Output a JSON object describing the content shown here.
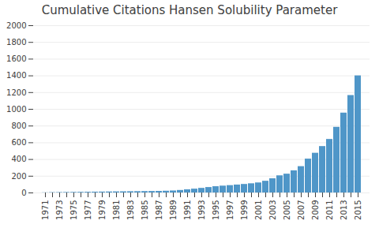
{
  "chart_data": {
    "type": "bar",
    "title": "Cumulative Citations Hansen Solubility Parameter",
    "categories": [
      1971,
      null,
      1973,
      null,
      1975,
      null,
      1977,
      null,
      1979,
      null,
      1981,
      null,
      1983,
      null,
      1985,
      null,
      1987,
      null,
      1989,
      null,
      1991,
      null,
      1993,
      null,
      1995,
      null,
      1997,
      null,
      1999,
      null,
      2001,
      null,
      2003,
      null,
      2005,
      null,
      2007,
      null,
      2009,
      null,
      2011,
      null,
      2013,
      null,
      2015
    ],
    "values": [
      2,
      4,
      5,
      6,
      7,
      8,
      9,
      10,
      11,
      12,
      13,
      14,
      15,
      16,
      17,
      18,
      19,
      21,
      24,
      30,
      38,
      46,
      55,
      65,
      75,
      82,
      88,
      95,
      102,
      110,
      120,
      140,
      170,
      205,
      225,
      265,
      315,
      405,
      475,
      555,
      640,
      785,
      955,
      1165,
      1400
    ],
    "color": "#4f96c8",
    "ylim": [
      0,
      2000
    ],
    "yticks": [
      0,
      200,
      400,
      600,
      800,
      1000,
      1200,
      1400,
      1600,
      1800,
      2000
    ],
    "grid": true
  }
}
